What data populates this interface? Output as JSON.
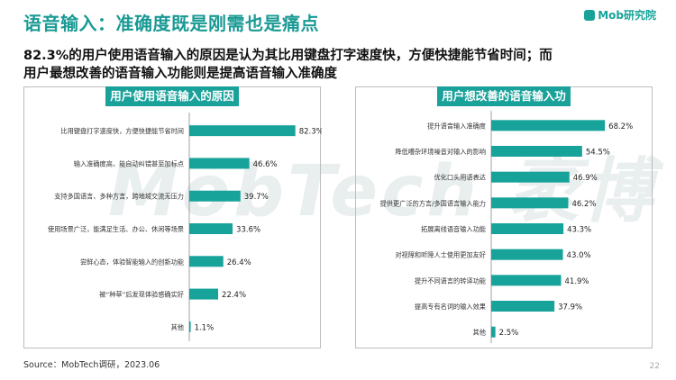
{
  "header": {
    "title": "语音输入：准确度既是刚需也是痛点",
    "logo": "Mob研究院",
    "subtitle_line1": "82.3%的用户使用语音输入的原因是认为其比用键盘打字速度快，方便快捷能节省时间；而",
    "subtitle_line2": "用户最想改善的语音输入功能则是提高语音输入准确度"
  },
  "watermark": "MobTech 袤博",
  "footer": {
    "source": "Source：MobTech调研，2023.06",
    "page": "22"
  },
  "colors": {
    "accent": "#1aa19a",
    "bar": "#17a29a",
    "title": "#1a9a94"
  },
  "chart_data": [
    {
      "type": "bar",
      "orientation": "horizontal",
      "title": "用户使用语音输入的原因",
      "categories": [
        "比用键盘打字速度快，方便快捷能节省时间",
        "输入准确度高，能自动纠错甚至加标点",
        "支持多国语言、多种方言，跨地域交流无压力",
        "使用场景广泛，能满足生活、办公、休闲等场景",
        "尝鲜心态，体验智能输入的创新功能",
        "被“种草”后发现体验感确实好",
        "其他"
      ],
      "values": [
        82.3,
        46.6,
        39.7,
        33.6,
        26.4,
        22.4,
        1.1
      ],
      "labels": [
        "82.3%",
        "46.6%",
        "39.7%",
        "33.6%",
        "26.4%",
        "22.4%",
        "1.1%"
      ],
      "xlim": [
        0,
        100
      ]
    },
    {
      "type": "bar",
      "orientation": "horizontal",
      "title": "用户想改善的语音输入功能",
      "categories": [
        "提升语音输入准确度",
        "降低嘈杂环境噪音对输入的影响",
        "优化口头用语表达",
        "提供更广泛的方言/多国语言输入能力",
        "拓展离线语音输入功能",
        "对视障和听障人士使用更加友好",
        "提升不同语言的转译功能",
        "提高专有名词的输入效果",
        "其他"
      ],
      "values": [
        68.2,
        54.5,
        46.9,
        46.2,
        43.3,
        43.0,
        41.9,
        37.9,
        2.5
      ],
      "labels": [
        "68.2%",
        "54.5%",
        "46.9%",
        "46.2%",
        "43.3%",
        "43.0%",
        "41.9%",
        "37.9%",
        "2.5%"
      ],
      "xlim": [
        0,
        100
      ]
    }
  ]
}
